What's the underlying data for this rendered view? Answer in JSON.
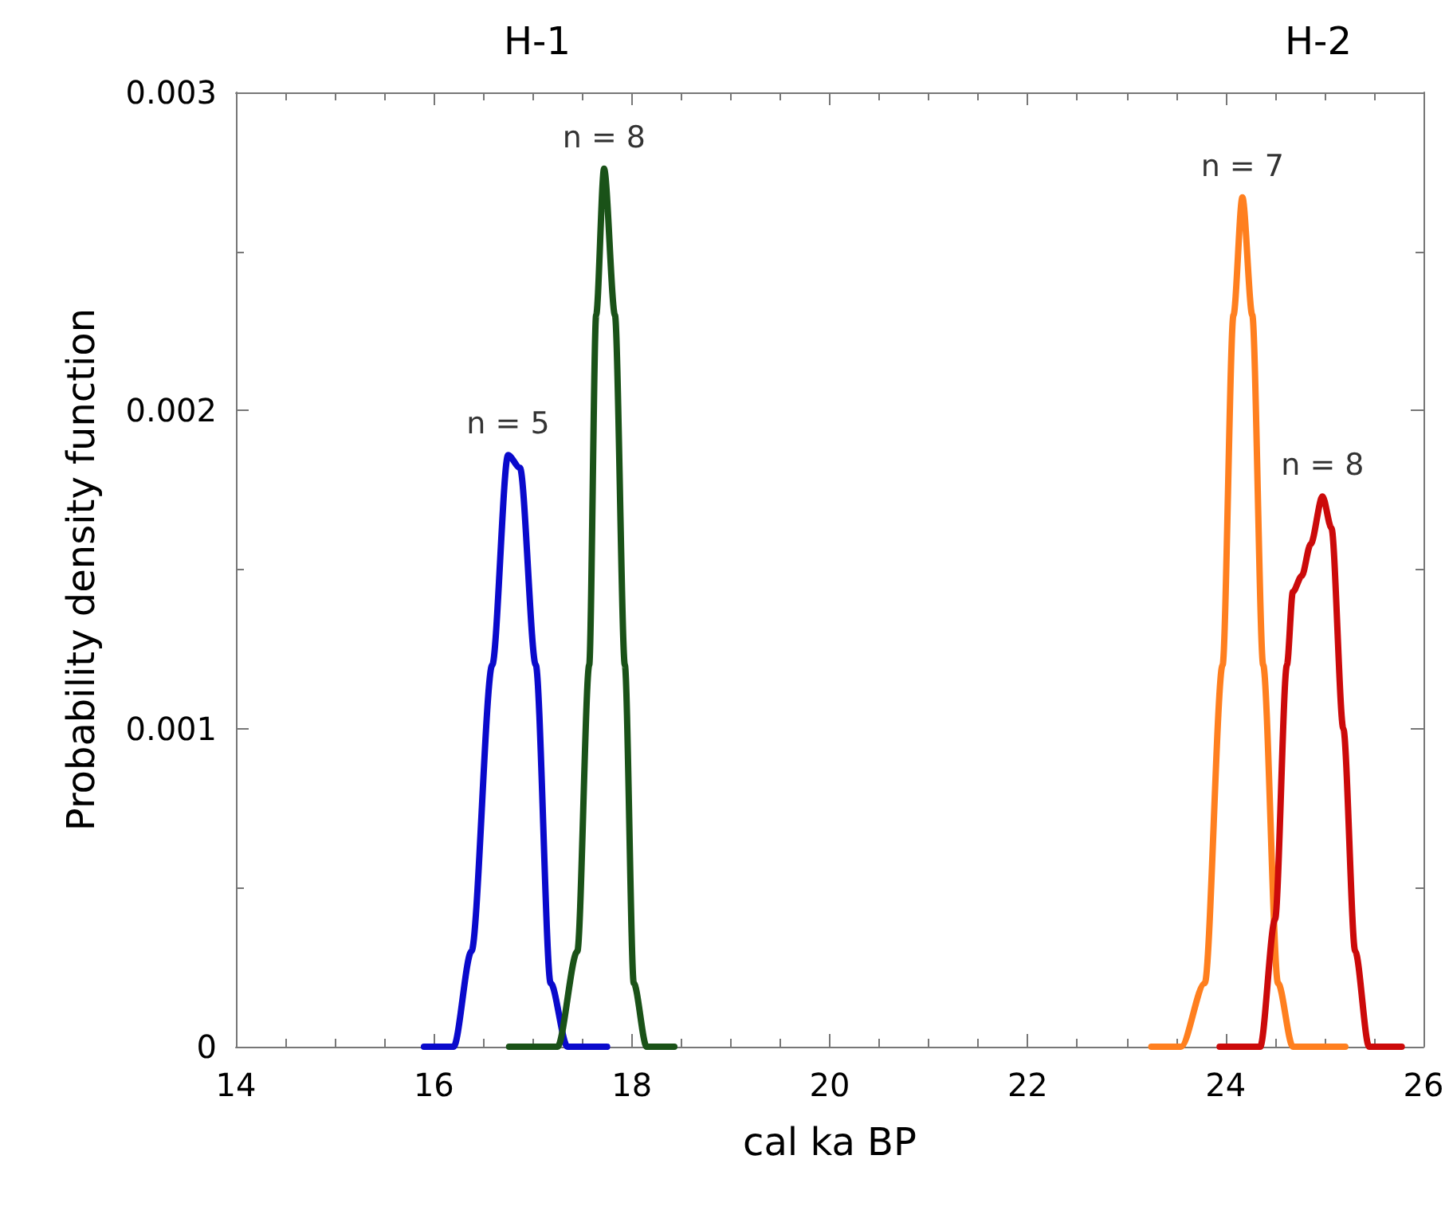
{
  "chart_data": {
    "type": "line",
    "xlabel": "cal ka BP",
    "ylabel": "Probability density function",
    "xlim": [
      14,
      26
    ],
    "xticks": [
      14,
      16,
      18,
      20,
      22,
      24,
      26
    ],
    "ylim": [
      0,
      0.003
    ],
    "yticks": [
      0,
      0.001,
      0.002,
      0.003
    ],
    "grid": false,
    "marker": "none",
    "line_style": "solid",
    "series": [
      {
        "color": "#0a0acc",
        "x": [
          15.9,
          16.2,
          16.38,
          16.59,
          16.75,
          16.87,
          17.03,
          17.18,
          17.35,
          17.75
        ],
        "values": [
          0,
          0,
          0.0003,
          0.0012,
          0.00186,
          0.00182,
          0.0012,
          0.0002,
          0,
          0
        ]
      },
      {
        "color": "#1a5218",
        "x": [
          16.76,
          17.25,
          17.45,
          17.57,
          17.64,
          17.72,
          17.83,
          17.93,
          18.02,
          18.15,
          18.43
        ],
        "values": [
          0,
          0,
          0.0003,
          0.0012,
          0.0023,
          0.00276,
          0.0023,
          0.0012,
          0.0002,
          0,
          0
        ]
      },
      {
        "color": "#ff7f1f",
        "x": [
          23.25,
          23.55,
          23.79,
          23.97,
          24.08,
          24.17,
          24.27,
          24.38,
          24.53,
          24.68,
          25.21
        ],
        "values": [
          0,
          0,
          0.0002,
          0.0012,
          0.0023,
          0.00267,
          0.0023,
          0.0012,
          0.0002,
          0,
          0
        ]
      },
      {
        "color": "#cc0a0a",
        "x": [
          23.94,
          24.35,
          24.5,
          24.62,
          24.68,
          24.77,
          24.86,
          24.98,
          25.07,
          25.19,
          25.31,
          25.45,
          25.78
        ],
        "values": [
          0,
          0,
          0.0004,
          0.0012,
          0.00143,
          0.00148,
          0.00158,
          0.00173,
          0.00163,
          0.001,
          0.0003,
          0,
          0
        ]
      }
    ],
    "annotations": [
      {
        "text": "n = 5",
        "x": 16.75,
        "y": 0.00186
      },
      {
        "text": "n = 8",
        "x": 17.72,
        "y": 0.00276
      },
      {
        "text": "n = 7",
        "x": 24.17,
        "y": 0.00267
      },
      {
        "text": "n = 8",
        "x": 24.98,
        "y": 0.00173
      },
      "H-1",
      "H-2"
    ]
  }
}
